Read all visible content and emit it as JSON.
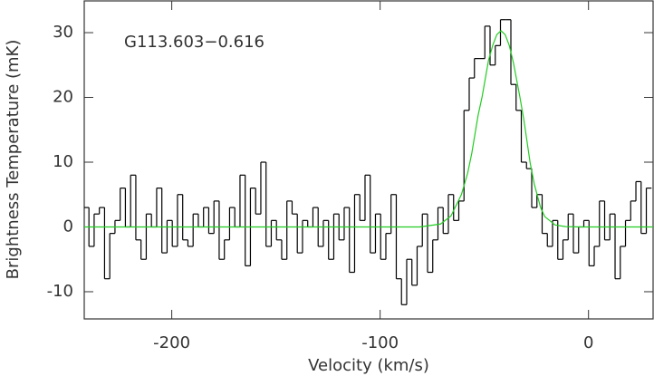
{
  "chart_data": {
    "type": "step",
    "annotation": "G113.603−0.616",
    "xlabel": "Velocity (km/s)",
    "ylabel": "Brightness Temperature (mK)",
    "xlim": [
      -242,
      31
    ],
    "ylim": [
      -14.2,
      34.9
    ],
    "xticks": [
      -200,
      -100,
      0
    ],
    "yticks": [
      -10,
      0,
      10,
      20,
      30
    ],
    "series": [
      {
        "color": "#000000",
        "kind": "step",
        "x": [
          -241,
          -238.5,
          -236,
          -233.5,
          -231,
          -228.5,
          -226,
          -223.5,
          -221,
          -218.5,
          -216,
          -213.5,
          -211,
          -208.5,
          -206,
          -203.5,
          -201,
          -198.5,
          -196,
          -193.5,
          -191,
          -188.5,
          -186,
          -183.5,
          -181,
          -178.5,
          -176,
          -173.5,
          -171,
          -168.5,
          -166,
          -163.5,
          -161,
          -158.5,
          -156,
          -153.5,
          -151,
          -148.5,
          -146,
          -143.5,
          -141,
          -138.5,
          -136,
          -133.5,
          -131,
          -128.5,
          -126,
          -123.5,
          -121,
          -118.5,
          -116,
          -113.5,
          -111,
          -108.5,
          -106,
          -103.5,
          -101,
          -98.5,
          -96,
          -93.5,
          -91,
          -88.5,
          -86,
          -83.5,
          -81,
          -78.5,
          -76,
          -73.5,
          -71,
          -68.5,
          -66,
          -63.5,
          -61,
          -58.5,
          -56,
          -53.5,
          -51,
          -48.5,
          -46,
          -43.5,
          -41,
          -38.5,
          -36,
          -33.5,
          -31,
          -28.5,
          -26,
          -23.5,
          -21,
          -18.5,
          -16,
          -13.5,
          -11,
          -8.5,
          -6,
          -3.5,
          -1,
          1.5,
          4,
          6.5,
          9,
          11.5,
          14,
          16.5,
          19,
          21.5,
          24,
          26.5,
          29
        ],
        "values": [
          3,
          -3,
          2,
          3,
          -8,
          -1,
          1,
          6,
          0,
          8,
          -2,
          -5,
          2,
          0,
          6,
          -4,
          1,
          -3,
          5,
          -2,
          -3,
          2,
          0,
          3,
          -1,
          4,
          -5,
          -2,
          3,
          0,
          8,
          -6,
          6,
          2,
          10,
          -3,
          1,
          -2,
          -5,
          4,
          2,
          -4,
          1,
          0,
          3,
          -3,
          1,
          -5,
          2,
          -2,
          3,
          -7,
          5,
          1,
          8,
          -4,
          2,
          -5,
          -1,
          5,
          -8,
          -12,
          -5,
          -9,
          -3,
          2,
          -7,
          -2,
          3,
          -1,
          5,
          1,
          4,
          18,
          23,
          26,
          26,
          31,
          25,
          28,
          32,
          32,
          22,
          18,
          10,
          9,
          3,
          5,
          -1,
          -3,
          1,
          -5,
          -2,
          2,
          -4,
          0,
          1,
          -6,
          -3,
          4,
          -2,
          2,
          -8,
          -3,
          1,
          4,
          7,
          -1,
          6
        ]
      },
      {
        "color": "#22cc22",
        "kind": "line",
        "x": [
          -242,
          -81,
          -71,
          -66,
          -61,
          -58,
          -56,
          -53,
          -51,
          -48,
          -46,
          -44,
          -42,
          -40,
          -38,
          -36,
          -33,
          -31,
          -28,
          -26,
          -23,
          -21,
          -16,
          -11,
          -3,
          31
        ],
        "values": [
          0,
          0,
          0.45,
          1.7,
          5.0,
          8.3,
          11.4,
          17.2,
          20.2,
          25.7,
          28.0,
          29.7,
          30.3,
          29.7,
          28.0,
          25.3,
          20.2,
          16.5,
          9.9,
          6.6,
          3.0,
          1.6,
          0.3,
          0.05,
          0,
          0
        ]
      }
    ]
  }
}
